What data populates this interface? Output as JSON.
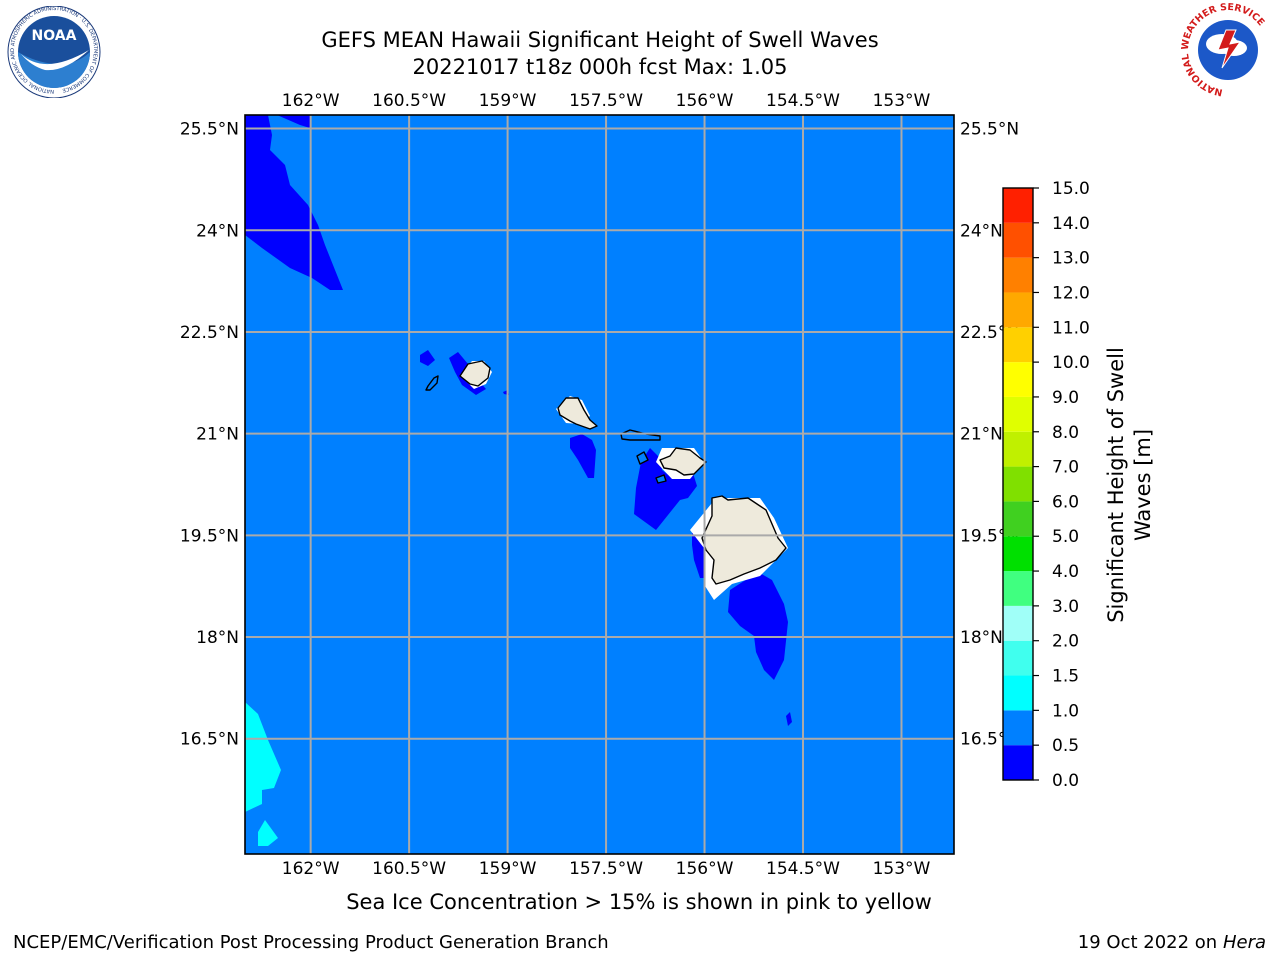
{
  "title": {
    "line1": "GEFS MEAN Hawaii Significant Height of Swell Waves",
    "line2": "20221017 t18z 000h fcst   Max: 1.05"
  },
  "map": {
    "extent": {
      "lon_min": -163.0,
      "lon_max": -152.2,
      "lat_min": 14.8,
      "lat_max": 25.7
    },
    "lon_ticks": [
      {
        "value": -162.0,
        "label": "162°W"
      },
      {
        "value": -160.5,
        "label": "160.5°W"
      },
      {
        "value": -159.0,
        "label": "159°W"
      },
      {
        "value": -157.5,
        "label": "157.5°W"
      },
      {
        "value": -156.0,
        "label": "156°W"
      },
      {
        "value": -154.5,
        "label": "154.5°W"
      },
      {
        "value": -153.0,
        "label": "153°W"
      }
    ],
    "lat_ticks": [
      {
        "value": 25.5,
        "label": "25.5°N"
      },
      {
        "value": 24.0,
        "label": "24°N"
      },
      {
        "value": 22.5,
        "label": "22.5°N"
      },
      {
        "value": 21.0,
        "label": "21°N"
      },
      {
        "value": 19.5,
        "label": "19.5°N"
      },
      {
        "value": 18.0,
        "label": "18°N"
      },
      {
        "value": 16.5,
        "label": "16.5°N"
      }
    ],
    "colors": {
      "ocean_background": "#0080ff",
      "low_swell": "#0000ff",
      "higher_swell": "#00ffff",
      "land": "#eeeadc",
      "grid": "#aaaaaa"
    }
  },
  "colorbar": {
    "title_line1": "Significant Height of Swell",
    "title_line2": "Waves [m]",
    "levels": [
      "0.0",
      "0.5",
      "1.0",
      "1.5",
      "2.0",
      "3.0",
      "4.0",
      "5.0",
      "6.0",
      "7.0",
      "8.0",
      "9.0",
      "10.0",
      "11.0",
      "12.0",
      "13.0",
      "14.0",
      "15.0"
    ],
    "colors": [
      "#0000ff",
      "#0080ff",
      "#00ffff",
      "#40ffee",
      "#a0fff8",
      "#40ff80",
      "#00e000",
      "#40d020",
      "#80e000",
      "#c0f000",
      "#e0ff00",
      "#ffff00",
      "#ffd000",
      "#ffa800",
      "#ff8000",
      "#ff5000",
      "#ff2000"
    ]
  },
  "caption": "Sea Ice Concentration > 15% is shown in pink to yellow",
  "footer": {
    "left": "NCEP/EMC/Verification Post Processing Product Generation Branch",
    "right_prefix": "19 Oct 2022 on ",
    "right_machine": "Hera"
  },
  "logos": {
    "noaa_text": "NOAA",
    "noaa_ring_text": "NATIONAL OCEANIC AND ATMOSPHERIC ADMINISTRATION · U.S. DEPARTMENT OF COMMERCE",
    "nws_ring_text": "NATIONAL WEATHER SERVICE"
  }
}
